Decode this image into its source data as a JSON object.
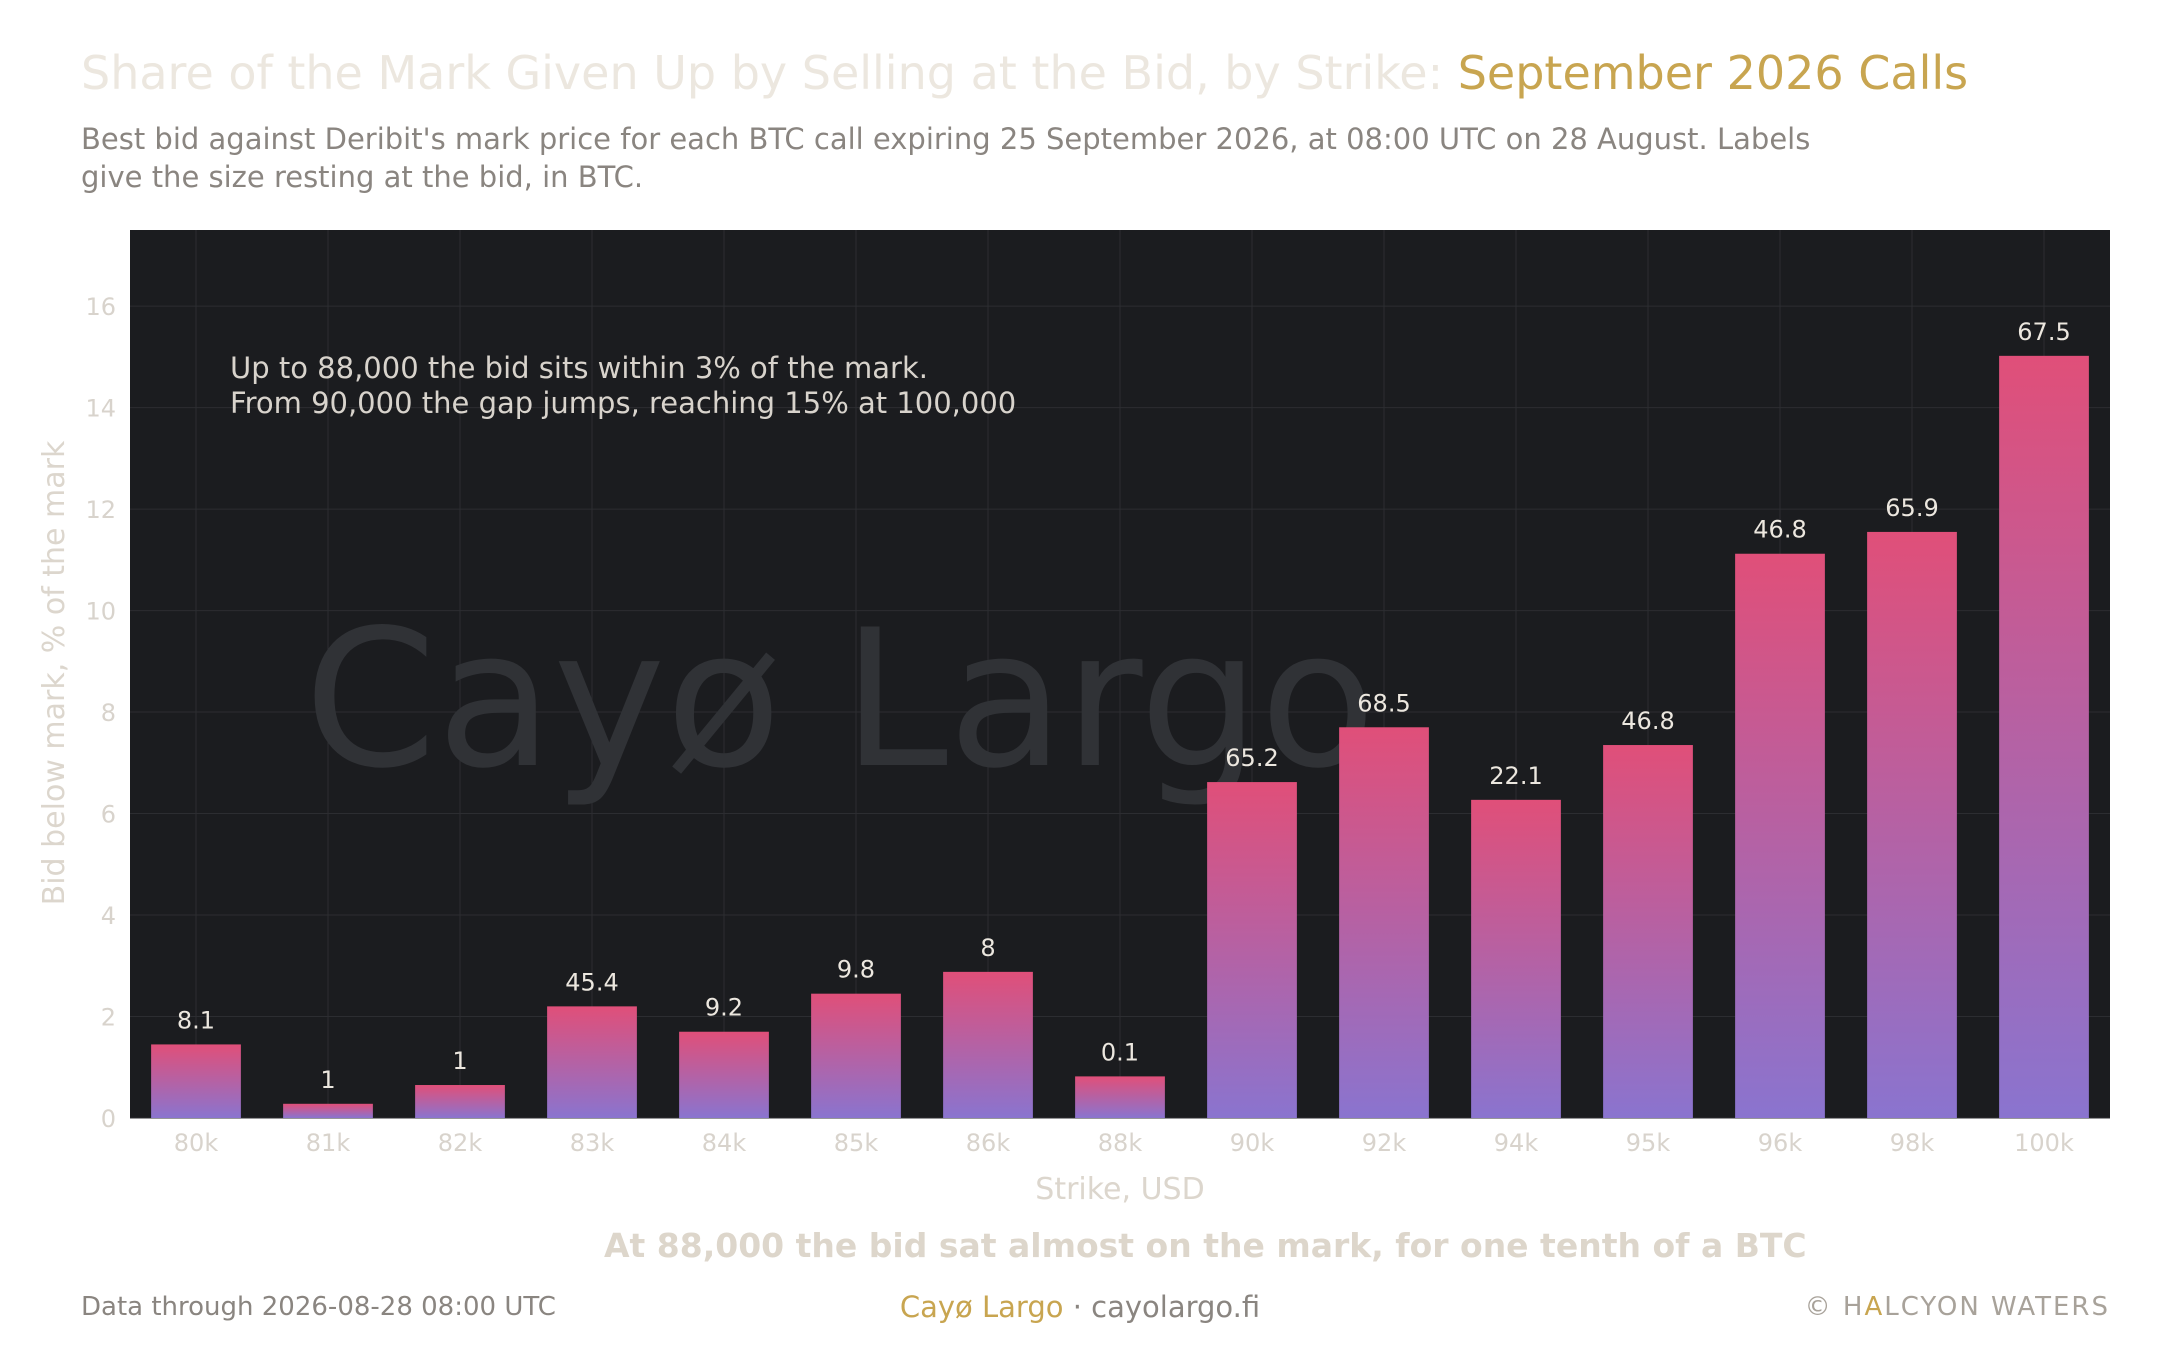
{
  "header": {
    "title_prefix": "Share of the Mark Given Up by Selling at the Bid, by Strike: ",
    "title_accent": "September 2026 Calls",
    "subtitle": "Best bid against Deribit's mark price for each BTC call expiring 25 September 2026, at 08:00 UTC on 28 August. Labels give the size resting at the bid, in BTC."
  },
  "chart_data": {
    "type": "bar",
    "categories": [
      "80k",
      "81k",
      "82k",
      "83k",
      "84k",
      "85k",
      "86k",
      "88k",
      "90k",
      "92k",
      "94k",
      "95k",
      "96k",
      "98k",
      "100k"
    ],
    "values": [
      1.45,
      0.28,
      0.65,
      2.2,
      1.7,
      2.45,
      2.88,
      0.82,
      6.62,
      7.7,
      6.27,
      7.35,
      11.12,
      11.55,
      15.02
    ],
    "bar_labels": [
      "8.1",
      "1",
      "1",
      "45.4",
      "9.2",
      "9.8",
      "8",
      "0.1",
      "65.2",
      "68.5",
      "22.1",
      "46.8",
      "46.8",
      "65.9",
      "67.5"
    ],
    "xlabel": "Strike, USD",
    "ylabel": "Bid below mark, % of the mark",
    "ylim": [
      0,
      17.5
    ],
    "yticks": [
      0,
      2,
      4,
      6,
      8,
      10,
      12,
      14,
      16
    ],
    "grid": true,
    "annotation": [
      "Up to 88,000 the bid sits within 3% of the mark.",
      "From 90,000 the gap jumps, reaching 15% at 100,000"
    ],
    "watermark": "Cayø Largo",
    "colors": {
      "plot_background": "#1b1c1f",
      "bar_top": "#e04f79",
      "bar_bottom": "#8a74cf",
      "label_text": "#ece7df",
      "axis_text": "#d8d3cc"
    }
  },
  "note": "At 88,000 the bid sat almost on the mark, for one tenth of a BTC",
  "footer": {
    "data_through": "Data through 2026-08-28 08:00 UTC",
    "brand": "Cayø Largo",
    "separator": "·",
    "site": "cayolargo.fi",
    "copyright": "©",
    "org_part1": "H",
    "org_accent": "A",
    "org_part2": "LCYON WATERS"
  }
}
